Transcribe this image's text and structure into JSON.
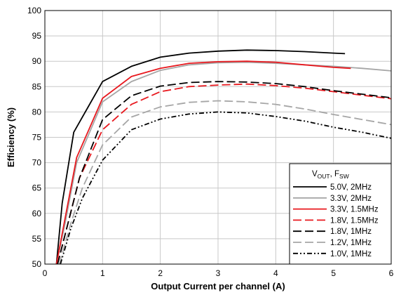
{
  "chart_data": {
    "type": "line",
    "xlabel": "Output Current per channel (A)",
    "ylabel": "Efficiency (%)",
    "xlim": [
      0,
      6
    ],
    "ylim": [
      50,
      100
    ],
    "x_ticks": [
      "0",
      "1",
      "2",
      "3",
      "4",
      "5",
      "6"
    ],
    "y_ticks": [
      "50",
      "55",
      "60",
      "65",
      "70",
      "75",
      "80",
      "85",
      "90",
      "95",
      "100"
    ],
    "grid": true,
    "legend": {
      "placement": "bottom-right",
      "title_main": "V",
      "title_sub1": "OUT",
      "title_sep": ", F",
      "title_sub2": "SW"
    },
    "series": [
      {
        "name": "5.0V, 2MHz",
        "color": "#000000",
        "dash": "solid",
        "x": [
          0.2,
          0.3,
          0.5,
          1.0,
          1.5,
          2.0,
          2.5,
          3.0,
          3.5,
          4.0,
          4.5,
          5.0,
          5.2
        ],
        "y": [
          50,
          62,
          76,
          86,
          89,
          90.8,
          91.6,
          92.0,
          92.2,
          92.1,
          91.9,
          91.6,
          91.5
        ]
      },
      {
        "name": "3.3V, 2MHz",
        "color": "#a6a6a6",
        "dash": "solid",
        "x": [
          0.2,
          0.35,
          0.55,
          1.0,
          1.5,
          2.0,
          2.5,
          3.0,
          3.5,
          4.0,
          4.5,
          5.0,
          5.5,
          6.0
        ],
        "y": [
          50,
          58,
          70,
          82,
          86,
          88.2,
          89.3,
          89.7,
          89.8,
          89.6,
          89.3,
          89.0,
          88.6,
          88.1
        ]
      },
      {
        "name": "3.3V, 1.5MHz",
        "color": "#e8181e",
        "dash": "solid",
        "x": [
          0.2,
          0.35,
          0.55,
          1.0,
          1.5,
          2.0,
          2.5,
          3.0,
          3.5,
          4.0,
          4.5,
          5.0,
          5.3
        ],
        "y": [
          50,
          59,
          71,
          82.7,
          87,
          88.6,
          89.6,
          89.9,
          90.0,
          89.8,
          89.3,
          88.8,
          88.6
        ]
      },
      {
        "name": "1.8V, 1.5MHz",
        "color": "#e8181e",
        "dash": "long",
        "x": [
          0.22,
          0.4,
          0.6,
          1.0,
          1.5,
          2.0,
          2.5,
          3.0,
          3.5,
          4.0,
          4.5,
          5.0,
          5.5,
          6.0
        ],
        "y": [
          50,
          58,
          67,
          76.5,
          81.5,
          84.0,
          85.0,
          85.3,
          85.5,
          85.2,
          84.7,
          84.0,
          83.3,
          82.6
        ]
      },
      {
        "name": "1.8V, 1MHz",
        "color": "#000000",
        "dash": "long",
        "x": [
          0.22,
          0.4,
          0.6,
          1.0,
          1.5,
          2.0,
          2.5,
          3.0,
          3.5,
          4.0,
          4.5,
          5.0,
          5.5,
          6.0
        ],
        "y": [
          50,
          58,
          67,
          78.5,
          83.2,
          85.1,
          85.8,
          86.0,
          85.9,
          85.6,
          85.0,
          84.2,
          83.5,
          82.8
        ]
      },
      {
        "name": "1.2V, 1MHz",
        "color": "#a6a6a6",
        "dash": "long",
        "x": [
          0.25,
          0.45,
          0.65,
          1.0,
          1.5,
          2.0,
          2.5,
          3.0,
          3.5,
          4.0,
          4.5,
          5.0,
          5.5,
          6.0
        ],
        "y": [
          50,
          58,
          65,
          73.5,
          79,
          81.0,
          81.9,
          82.2,
          82.0,
          81.5,
          80.6,
          79.5,
          78.5,
          77.5
        ]
      },
      {
        "name": "1.0V, 1MHz",
        "color": "#000000",
        "dash": "dashdotdot",
        "x": [
          0.27,
          0.45,
          0.65,
          1.0,
          1.5,
          2.0,
          2.5,
          3.0,
          3.5,
          4.0,
          4.5,
          5.0,
          5.5,
          6.0
        ],
        "y": [
          50,
          57,
          63,
          70.5,
          76.5,
          78.6,
          79.6,
          80.0,
          79.8,
          79.1,
          78.2,
          77.0,
          76.0,
          74.8
        ]
      }
    ]
  }
}
